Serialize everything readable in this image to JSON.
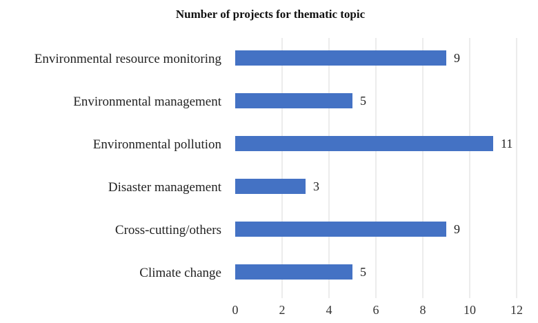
{
  "chart_data": {
    "type": "bar",
    "orientation": "horizontal",
    "title": "Number of projects for thematic topic",
    "xlabel": "",
    "ylabel": "",
    "categories": [
      "Environmental resource monitoring",
      "Environmental management",
      "Environmental pollution",
      "Disaster management",
      "Cross-cutting/others",
      "Climate change"
    ],
    "values": [
      9,
      5,
      11,
      3,
      9,
      5
    ],
    "data_labels": [
      "9",
      "5",
      "11",
      "3",
      "9",
      "5"
    ],
    "xlim": [
      0,
      12
    ],
    "x_ticks": [
      0,
      2,
      4,
      6,
      8,
      10,
      12
    ],
    "x_tick_labels": [
      "0",
      "2",
      "4",
      "6",
      "8",
      "10",
      "12"
    ],
    "grid": "vertical",
    "legend": "none",
    "bar_color": "#4472C4",
    "grid_color": "#d9d9d9"
  }
}
